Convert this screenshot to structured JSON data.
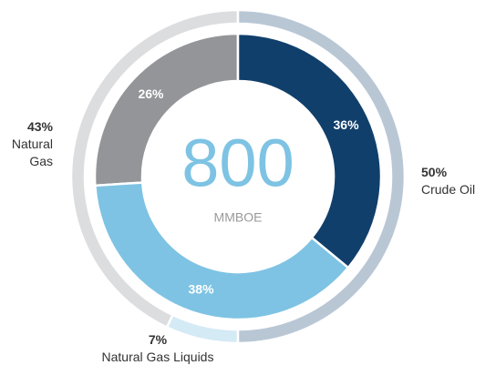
{
  "chart_data": {
    "type": "nested-donut",
    "center_value": 800,
    "center_label": "MMBOE",
    "rings": [
      {
        "values": [
          36,
          38,
          26
        ],
        "value_labels": [
          "36%",
          "38%",
          "26%"
        ],
        "colors": [
          "#103f6b",
          "#7ec3e3",
          "#939598"
        ]
      },
      {
        "categories": [
          "Crude Oil",
          "Natural Gas Liquids",
          "Natural Gas"
        ],
        "values": [
          50,
          7,
          43
        ],
        "value_labels": [
          "50%",
          "7%",
          "43%"
        ],
        "colors": [
          "#b9c7d5",
          "#d4eaf5",
          "#dcdddf"
        ]
      }
    ]
  }
}
